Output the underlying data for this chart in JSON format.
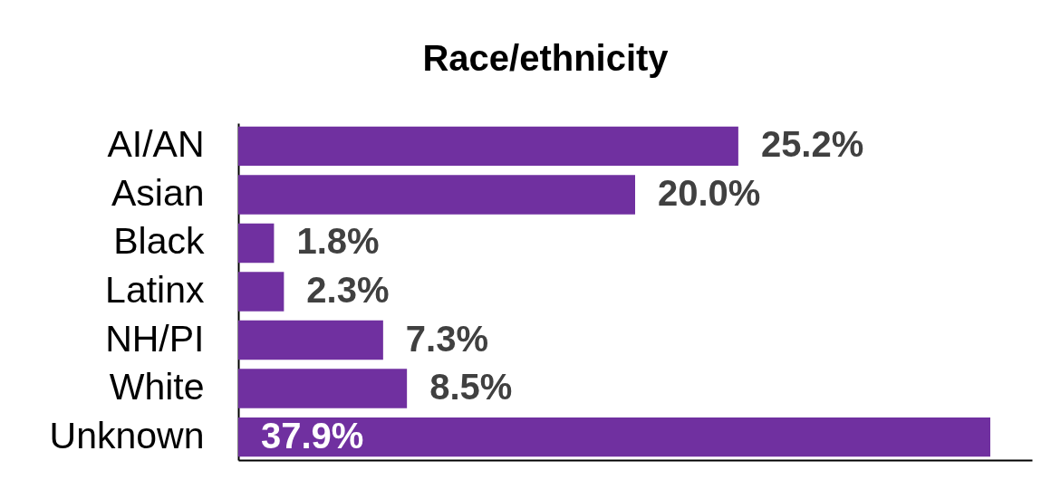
{
  "chart_data": {
    "type": "bar",
    "title": "Race/ethnicity",
    "orientation": "horizontal",
    "categories": [
      "AI/AN",
      "Asian",
      "Black",
      "Latinx",
      "NH/PI",
      "White",
      "Unknown"
    ],
    "values": [
      25.2,
      20.0,
      1.8,
      2.3,
      7.3,
      8.5,
      37.9
    ],
    "color": "#7030a0",
    "value_labels": [
      "25.2%",
      "20.0%",
      "1.8%",
      "2.3%",
      "7.3%",
      "8.5%",
      "37.9%"
    ],
    "xlim": [
      0,
      40
    ],
    "tick_labels": "y"
  }
}
